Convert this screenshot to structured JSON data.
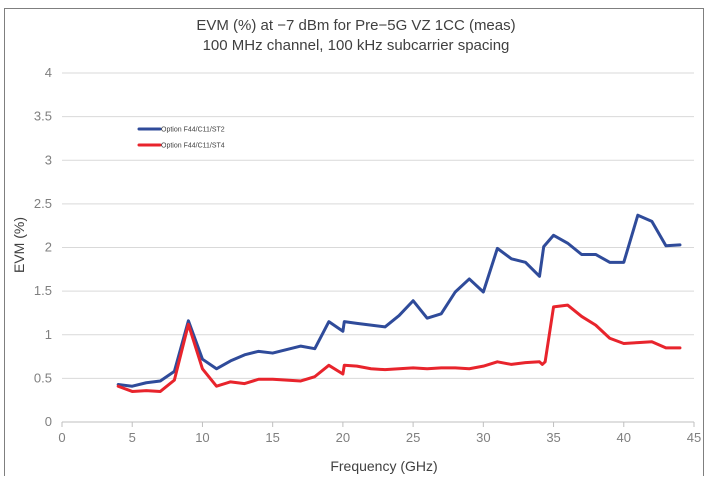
{
  "chart_data": {
    "type": "line",
    "title": "EVM (%) at −7 dBm for Pre−5G VZ 1CC (meas)",
    "subtitle": "100 MHz channel, 100 kHz subcarrier spacing",
    "xlabel": "Frequency (GHz)",
    "ylabel": "EVM (%)",
    "xlim": [
      0,
      45
    ],
    "ylim": [
      0,
      4
    ],
    "x_ticks": [
      "0",
      "5",
      "10",
      "15",
      "20",
      "25",
      "30",
      "35",
      "40",
      "45"
    ],
    "y_ticks": [
      "0",
      "0.5",
      "1",
      "1.5",
      "2",
      "2.5",
      "3",
      "3.5",
      "4"
    ],
    "grid": "horizontal",
    "legend_position": "top-left",
    "series": [
      {
        "name": "Option F44/C11/ST2",
        "color": "#2f4b9a",
        "points": [
          [
            4,
            0.43
          ],
          [
            5,
            0.41
          ],
          [
            6,
            0.45
          ],
          [
            7,
            0.47
          ],
          [
            8,
            0.58
          ],
          [
            9,
            1.16
          ],
          [
            10,
            0.72
          ],
          [
            11,
            0.61
          ],
          [
            12,
            0.7
          ],
          [
            13,
            0.77
          ],
          [
            14,
            0.81
          ],
          [
            15,
            0.79
          ],
          [
            16,
            0.83
          ],
          [
            17,
            0.87
          ],
          [
            18,
            0.84
          ],
          [
            19,
            1.15
          ],
          [
            20,
            1.04
          ],
          [
            20.1,
            1.15
          ],
          [
            21,
            1.13
          ],
          [
            22,
            1.11
          ],
          [
            23,
            1.09
          ],
          [
            24,
            1.22
          ],
          [
            25,
            1.39
          ],
          [
            26,
            1.19
          ],
          [
            27,
            1.24
          ],
          [
            28,
            1.49
          ],
          [
            29,
            1.64
          ],
          [
            30,
            1.49
          ],
          [
            31,
            1.99
          ],
          [
            32,
            1.87
          ],
          [
            33,
            1.83
          ],
          [
            34,
            1.67
          ],
          [
            34.3,
            2.01
          ],
          [
            35,
            2.14
          ],
          [
            36,
            2.05
          ],
          [
            37,
            1.92
          ],
          [
            38,
            1.92
          ],
          [
            39,
            1.83
          ],
          [
            40,
            1.83
          ],
          [
            41,
            2.37
          ],
          [
            42,
            2.3
          ],
          [
            43,
            2.02
          ],
          [
            44,
            2.03
          ]
        ]
      },
      {
        "name": "Option F44/C11/ST4",
        "color": "#e8242c",
        "points": [
          [
            4,
            0.41
          ],
          [
            5,
            0.35
          ],
          [
            6,
            0.36
          ],
          [
            7,
            0.35
          ],
          [
            8,
            0.48
          ],
          [
            9,
            1.12
          ],
          [
            10,
            0.61
          ],
          [
            11,
            0.41
          ],
          [
            12,
            0.46
          ],
          [
            13,
            0.44
          ],
          [
            14,
            0.49
          ],
          [
            15,
            0.49
          ],
          [
            16,
            0.48
          ],
          [
            17,
            0.47
          ],
          [
            18,
            0.52
          ],
          [
            19,
            0.65
          ],
          [
            20,
            0.55
          ],
          [
            20.1,
            0.65
          ],
          [
            21,
            0.64
          ],
          [
            22,
            0.61
          ],
          [
            23,
            0.6
          ],
          [
            24,
            0.61
          ],
          [
            25,
            0.62
          ],
          [
            26,
            0.61
          ],
          [
            27,
            0.62
          ],
          [
            28,
            0.62
          ],
          [
            29,
            0.61
          ],
          [
            30,
            0.64
          ],
          [
            31,
            0.69
          ],
          [
            32,
            0.66
          ],
          [
            33,
            0.68
          ],
          [
            34,
            0.69
          ],
          [
            34.2,
            0.66
          ],
          [
            34.4,
            0.69
          ],
          [
            35,
            1.32
          ],
          [
            36,
            1.34
          ],
          [
            37,
            1.21
          ],
          [
            38,
            1.11
          ],
          [
            39,
            0.96
          ],
          [
            40,
            0.9
          ],
          [
            41,
            0.91
          ],
          [
            42,
            0.92
          ],
          [
            43,
            0.85
          ],
          [
            44,
            0.85
          ]
        ]
      }
    ]
  }
}
